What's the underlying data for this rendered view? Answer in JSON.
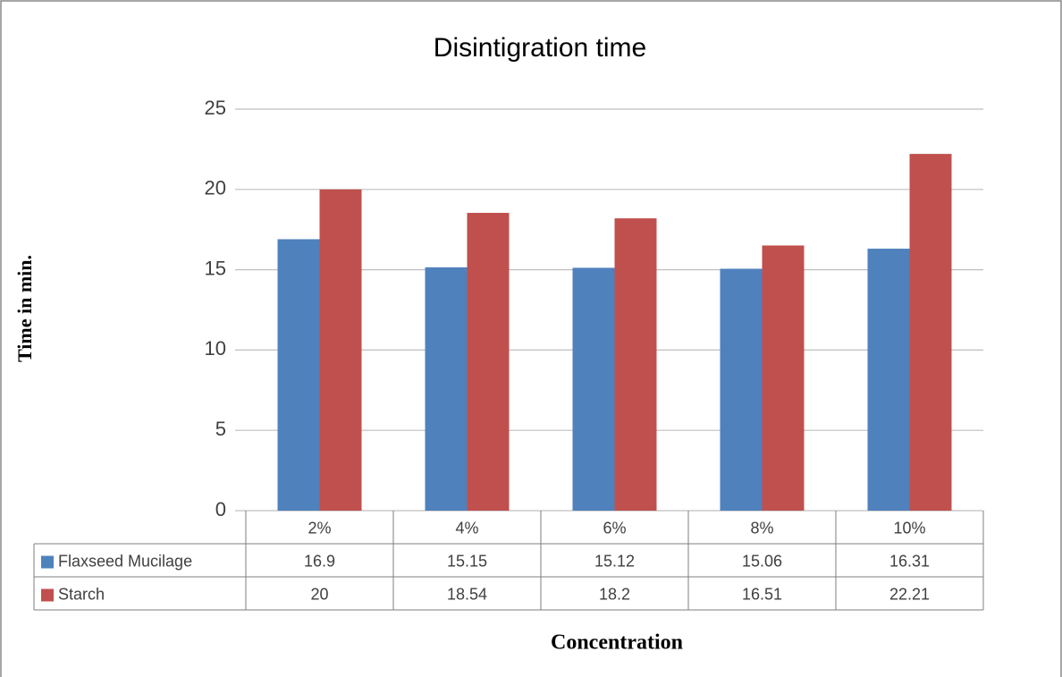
{
  "chart_data": {
    "type": "bar",
    "title": "Disintigration time",
    "x_label": "Concentration",
    "y_label": "Time in min.",
    "categories": [
      "2%",
      "4%",
      "6%",
      "8%",
      "10%"
    ],
    "series": [
      {
        "name": "Flaxseed Mucilage",
        "color": "#4f81bd",
        "values": [
          16.9,
          15.15,
          15.12,
          15.06,
          16.31
        ]
      },
      {
        "name": "Starch",
        "color": "#c0504d",
        "values": [
          20,
          18.54,
          18.2,
          16.51,
          22.21
        ]
      }
    ],
    "ylim": [
      0,
      25
    ],
    "yticks": [
      0,
      5,
      10,
      15,
      20,
      25
    ],
    "grid": true,
    "data_table": true
  }
}
